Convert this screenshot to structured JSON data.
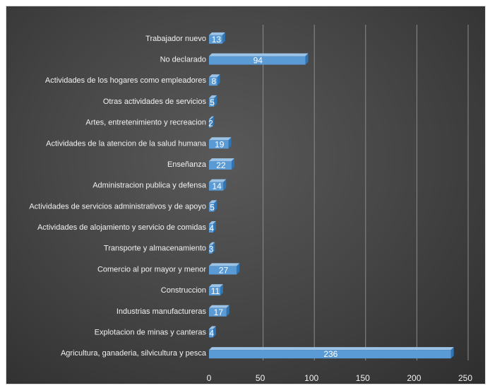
{
  "chart_data": {
    "type": "bar",
    "orientation": "horizontal",
    "style": "3d",
    "categories": [
      "Trabajador nuevo",
      "No declarado",
      "Actividades de los hogares como empleadores",
      "Otras actividades de servicios",
      "Artes, entretenimiento y recreacion",
      "Actividades de la atencion de la salud humana",
      "Enseñanza",
      "Administracion publica y defensa",
      "Actividades de servicios administrativos y de apoyo",
      "Actividades de alojamiento y servicio de comidas",
      "Transporte y almacenamiento",
      "Comercio al por mayor y menor",
      "Construccion",
      "Industrias manufactureras",
      "Explotacion de minas y canteras",
      "Agricultura, ganaderia, silvicultura y pesca"
    ],
    "values": [
      13,
      94,
      8,
      5,
      2,
      19,
      22,
      14,
      5,
      4,
      3,
      27,
      11,
      17,
      4,
      236
    ],
    "value_labels": [
      "13",
      "94",
      "8",
      "5",
      "2",
      "19",
      "22",
      "14",
      "5",
      "4",
      "3",
      "27",
      "11",
      "17",
      "4",
      "236"
    ],
    "xlim": [
      0,
      250
    ],
    "x_ticks": [
      "0",
      "50",
      "100",
      "150",
      "200",
      "250"
    ],
    "title": "",
    "xlabel": "",
    "ylabel": "",
    "grid": "vertical",
    "legend": "none",
    "colors": {
      "bar_front": "#5b9bd5",
      "bar_top": "#9dc3e6",
      "bar_side": "#2e75b6",
      "gridline": "#8c8c8c",
      "text": "#f2f2f2",
      "background": "#474747"
    }
  }
}
